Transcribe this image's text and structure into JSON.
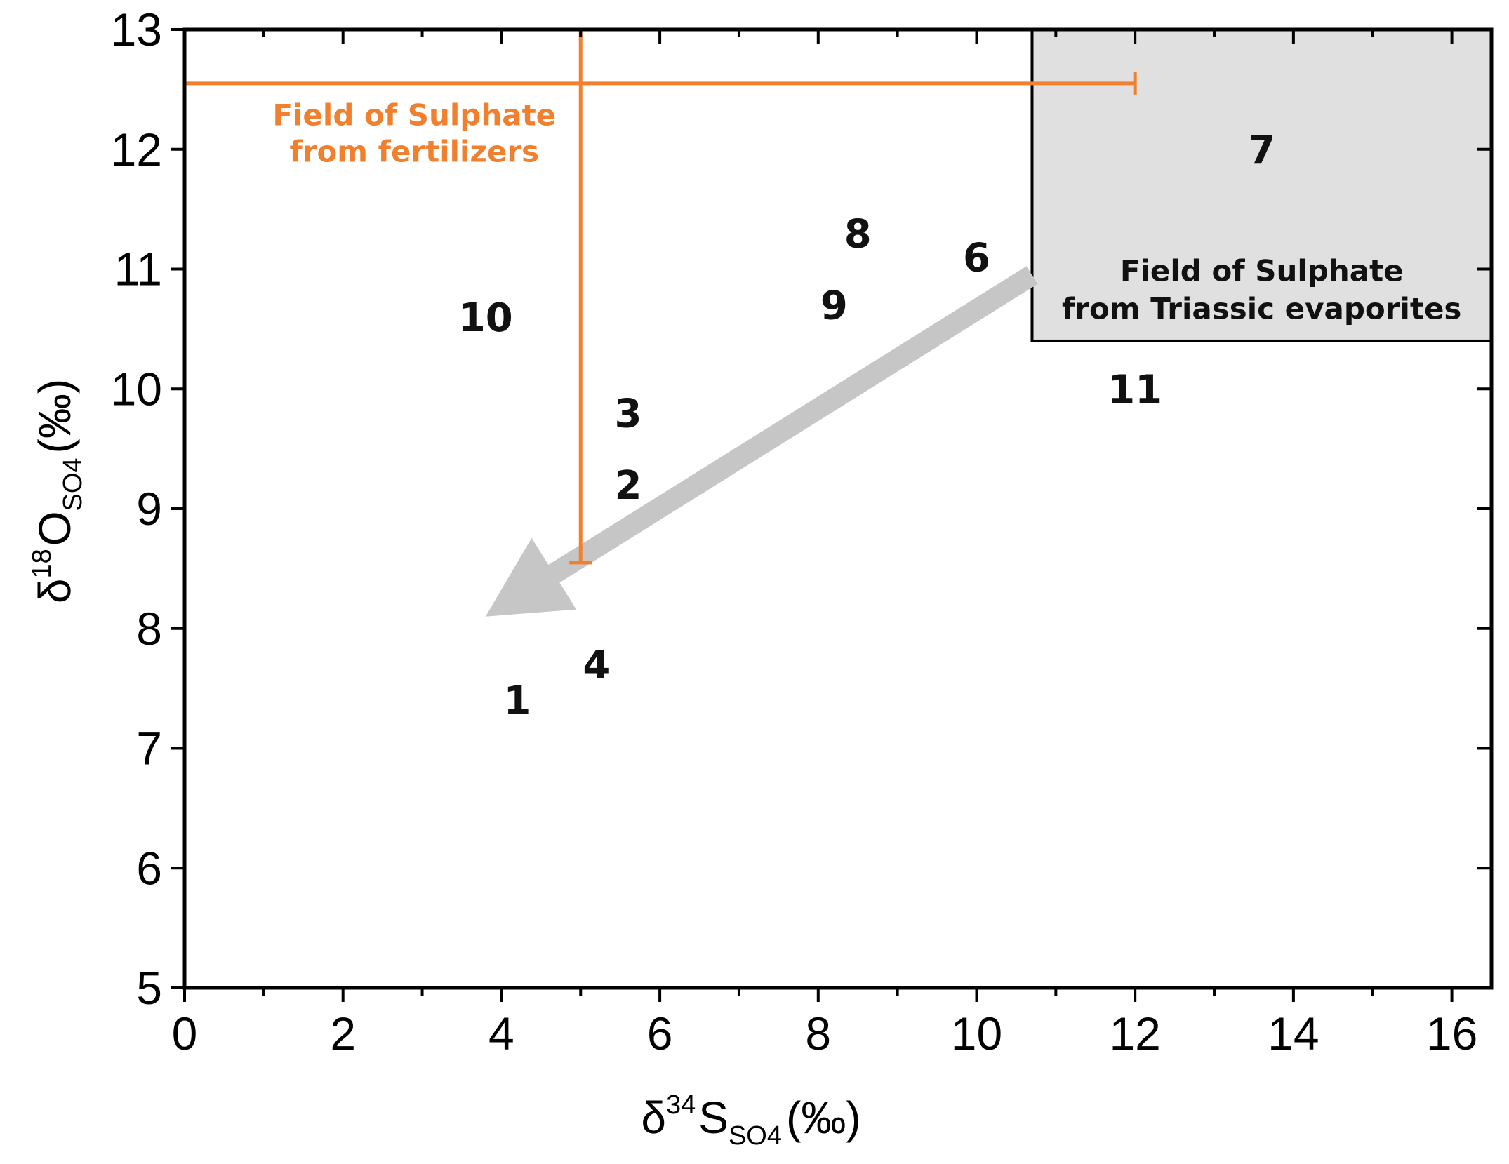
{
  "chart_data": {
    "type": "scatter",
    "title": "",
    "xlabel": {
      "delta": "δ",
      "sup": "34",
      "main": "S",
      "sub": "SO4",
      "unit": "(‰)"
    },
    "ylabel": {
      "delta": "δ",
      "sup": "18",
      "main": "O",
      "sub": "SO4",
      "unit": "(‰)"
    },
    "xlim": [
      0,
      16.5
    ],
    "ylim": [
      5,
      13
    ],
    "x_ticks": [
      0,
      2,
      4,
      6,
      8,
      10,
      12,
      14,
      16
    ],
    "y_ticks": [
      5,
      6,
      7,
      8,
      9,
      10,
      11,
      12,
      13
    ],
    "x_tick_labels": [
      "0",
      "2",
      "4",
      "6",
      "8",
      "10",
      "12",
      "14",
      "16"
    ],
    "y_tick_labels": [
      "5",
      "6",
      "7",
      "8",
      "9",
      "10",
      "11",
      "12",
      "13"
    ],
    "x_minor_ticks": [
      1,
      3,
      5,
      7,
      9,
      11,
      13,
      15
    ],
    "y_minor_ticks": [],
    "grid": false,
    "points": [
      {
        "label": "1",
        "x": 4.2,
        "y": 7.4
      },
      {
        "label": "2",
        "x": 5.6,
        "y": 9.2
      },
      {
        "label": "3",
        "x": 5.6,
        "y": 9.8
      },
      {
        "label": "4",
        "x": 5.2,
        "y": 7.7
      },
      {
        "label": "6",
        "x": 10.0,
        "y": 11.1
      },
      {
        "label": "7",
        "x": 13.6,
        "y": 12.0
      },
      {
        "label": "8",
        "x": 8.5,
        "y": 11.3
      },
      {
        "label": "9",
        "x": 8.2,
        "y": 10.7
      },
      {
        "label": "10",
        "x": 3.8,
        "y": 10.6
      },
      {
        "label": "11",
        "x": 12.0,
        "y": 10.0
      }
    ],
    "fertilizer_field": {
      "label_lines": [
        "Field of Sulphate",
        "from fertilizers"
      ],
      "color": "#f07f2e",
      "x_range": [
        0,
        12
      ],
      "x_bar_y": 12.55,
      "y_range": [
        8.55,
        13
      ],
      "y_bar_x": 5
    },
    "evaporite_field": {
      "label_lines": [
        "Field of Sulphate",
        "from Triassic evaporites"
      ],
      "fill": "#e0e0e0",
      "x_range": [
        10.7,
        16.5
      ],
      "y_range": [
        10.4,
        13
      ]
    },
    "arrow": {
      "color": "#c6c6c6",
      "from": {
        "x": 10.7,
        "y": 10.95
      },
      "to": {
        "x": 3.8,
        "y": 8.1
      }
    }
  }
}
